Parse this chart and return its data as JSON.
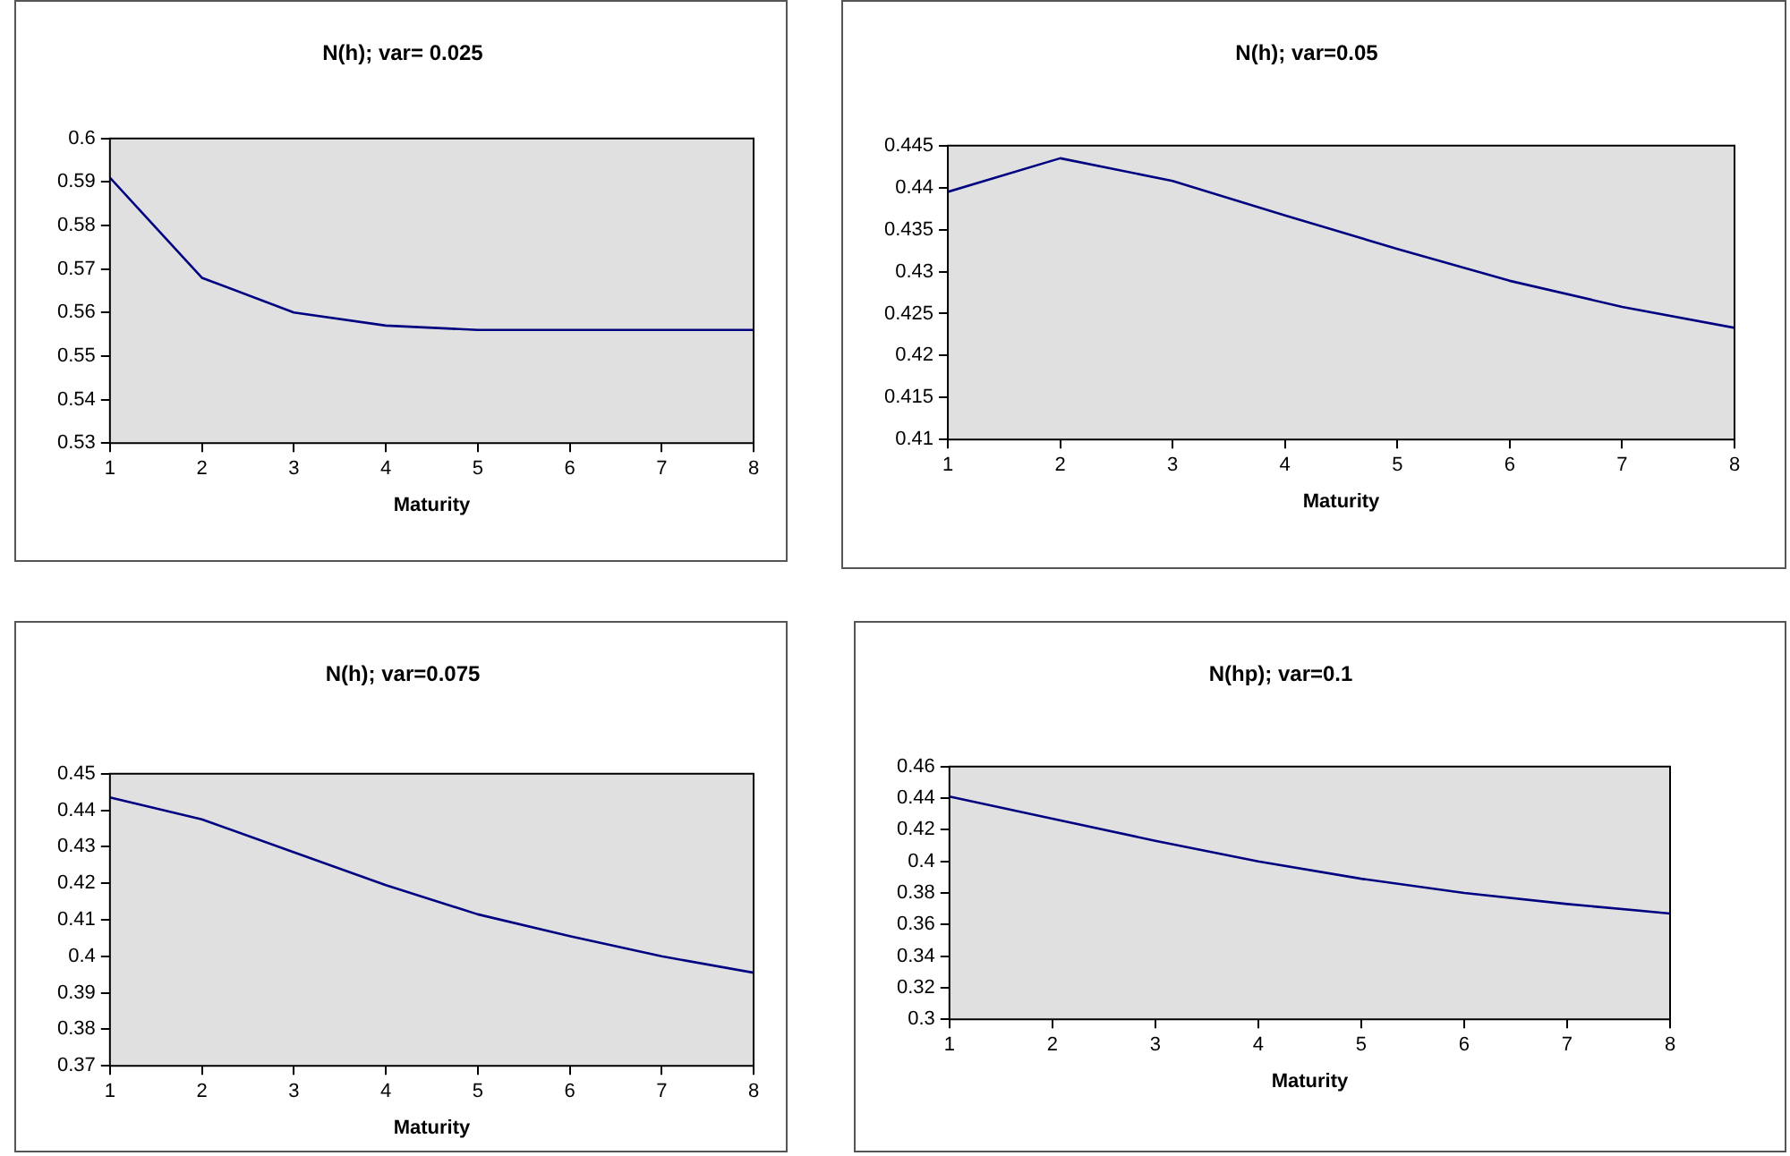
{
  "chart_data": [
    {
      "type": "line",
      "title": "N(h); var= 0.025",
      "xlabel": "Maturity",
      "x": [
        1,
        2,
        3,
        4,
        5,
        6,
        7,
        8
      ],
      "series": [
        {
          "color": "#000080",
          "values": [
            0.591,
            0.568,
            0.56,
            0.557,
            0.556,
            0.556,
            0.556,
            0.556
          ]
        }
      ],
      "xlim": [
        1,
        8
      ],
      "xticks": [
        1,
        2,
        3,
        4,
        5,
        6,
        7,
        8
      ],
      "ylim": [
        0.53,
        0.6
      ],
      "yticks": [
        0.53,
        0.54,
        0.55,
        0.56,
        0.57,
        0.58,
        0.59,
        0.6
      ]
    },
    {
      "type": "line",
      "title": "N(h); var=0.05",
      "xlabel": "Maturity",
      "x": [
        1,
        2,
        3,
        4,
        5,
        6,
        7,
        8
      ],
      "series": [
        {
          "color": "#000080",
          "values": [
            0.4395,
            0.4435,
            0.4408,
            0.4367,
            0.4327,
            0.4289,
            0.4258,
            0.4233
          ]
        }
      ],
      "xlim": [
        1,
        8
      ],
      "xticks": [
        1,
        2,
        3,
        4,
        5,
        6,
        7,
        8
      ],
      "ylim": [
        0.41,
        0.445
      ],
      "yticks": [
        0.41,
        0.415,
        0.42,
        0.425,
        0.43,
        0.435,
        0.44,
        0.445
      ]
    },
    {
      "type": "line",
      "title": "N(h); var=0.075",
      "xlabel": "Maturity",
      "x": [
        1,
        2,
        3,
        4,
        5,
        6,
        7,
        8
      ],
      "series": [
        {
          "color": "#000080",
          "values": [
            0.4435,
            0.4375,
            0.4285,
            0.4195,
            0.4115,
            0.4055,
            0.4,
            0.3955
          ]
        }
      ],
      "xlim": [
        1,
        8
      ],
      "xticks": [
        1,
        2,
        3,
        4,
        5,
        6,
        7,
        8
      ],
      "ylim": [
        0.37,
        0.45
      ],
      "yticks": [
        0.37,
        0.38,
        0.39,
        0.4,
        0.41,
        0.42,
        0.43,
        0.44,
        0.45
      ]
    },
    {
      "type": "line",
      "title": "N(hp); var=0.1",
      "xlabel": "Maturity",
      "x": [
        1,
        2,
        3,
        4,
        5,
        6,
        7,
        8
      ],
      "series": [
        {
          "color": "#000080",
          "values": [
            0.441,
            0.427,
            0.413,
            0.4,
            0.389,
            0.38,
            0.373,
            0.367
          ]
        }
      ],
      "xlim": [
        1,
        8
      ],
      "xticks": [
        1,
        2,
        3,
        4,
        5,
        6,
        7,
        8
      ],
      "ylim": [
        0.3,
        0.46
      ],
      "yticks": [
        0.3,
        0.32,
        0.34,
        0.36,
        0.38,
        0.4,
        0.42,
        0.44,
        0.46
      ]
    }
  ]
}
